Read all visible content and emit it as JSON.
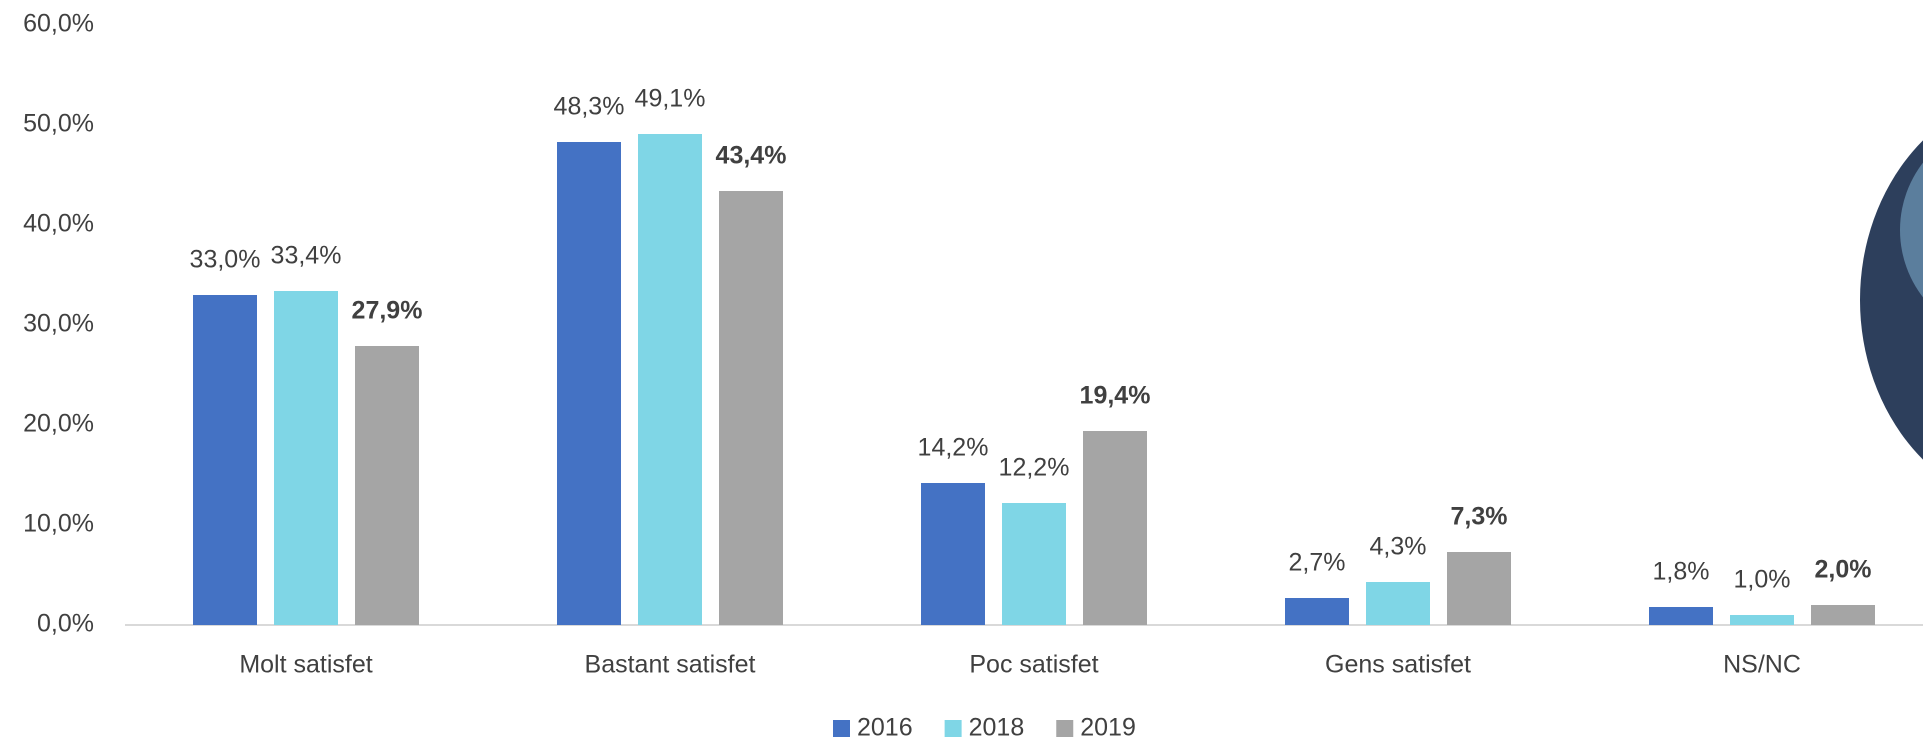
{
  "chart_data": {
    "type": "bar",
    "categories": [
      "Molt satisfet",
      "Bastant satisfet",
      "Poc satisfet",
      "Gens satisfet",
      "NS/NC"
    ],
    "series": [
      {
        "name": "2016",
        "color": "#4472c4",
        "values": [
          33.0,
          48.3,
          14.2,
          2.7,
          1.8
        ],
        "value_labels": [
          "33,0%",
          "48,3%",
          "14,2%",
          "2,7%",
          "1,8%"
        ]
      },
      {
        "name": "2018",
        "color": "#7fd6e6",
        "values": [
          33.4,
          49.1,
          12.2,
          4.3,
          1.0
        ],
        "value_labels": [
          "33,4%",
          "49,1%",
          "12,2%",
          "4,3%",
          "1,0%"
        ]
      },
      {
        "name": "2019",
        "color": "#a5a5a5",
        "values": [
          27.9,
          43.4,
          19.4,
          7.3,
          2.0
        ],
        "value_labels": [
          "27,9%",
          "43,4%",
          "19,4%",
          "7,3%",
          "2,0%"
        ],
        "bold_labels": true
      }
    ],
    "ylim": [
      0,
      60
    ],
    "yticks": [
      {
        "value": 0,
        "label": "0,0%"
      },
      {
        "value": 10,
        "label": "10,0%"
      },
      {
        "value": 20,
        "label": "20,0%"
      },
      {
        "value": 30,
        "label": "30,0%"
      },
      {
        "value": 40,
        "label": "40,0%"
      },
      {
        "value": 50,
        "label": "50,0%"
      },
      {
        "value": 60,
        "label": "60,0%"
      }
    ],
    "legend": "bottom"
  }
}
